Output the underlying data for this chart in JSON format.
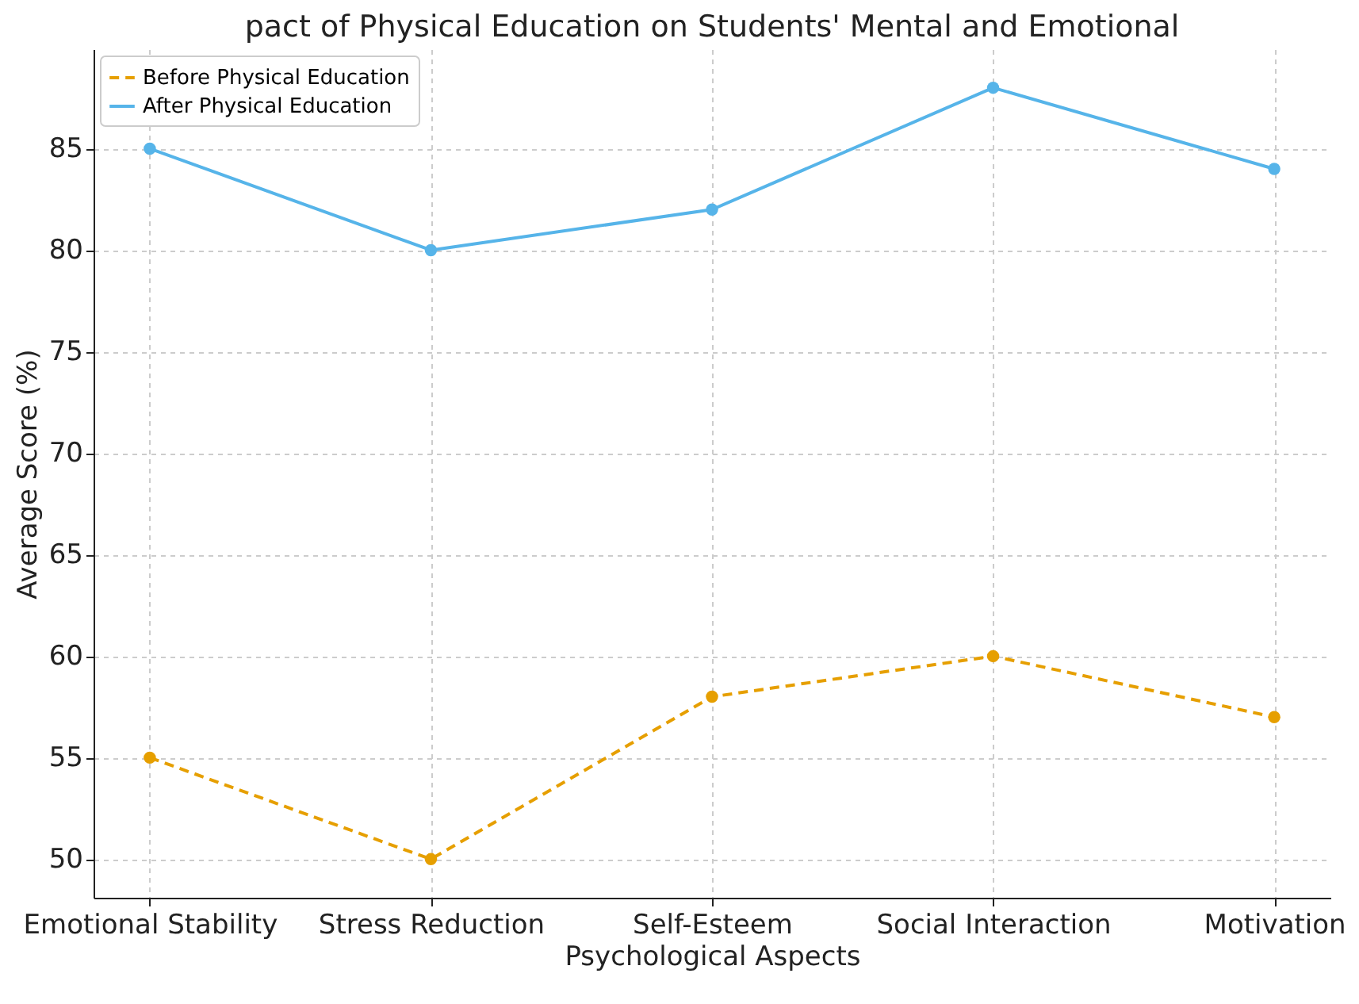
{
  "chart_data": {
    "type": "line",
    "title": "pact of Physical Education on Students' Mental and Emotional",
    "xlabel": "Psychological Aspects",
    "ylabel": "Average Score (%)",
    "categories": [
      "Emotional Stability",
      "Stress Reduction",
      "Self-Esteem",
      "Social Interaction",
      "Motivation"
    ],
    "series": [
      {
        "name": "Before Physical Education",
        "color": "#e69f00",
        "line_style": "dashed",
        "values": [
          55,
          50,
          58,
          60,
          57
        ]
      },
      {
        "name": "After Physical Education",
        "color": "#56b4e9",
        "line_style": "solid",
        "values": [
          85,
          80,
          82,
          88,
          84
        ]
      }
    ],
    "ylim": [
      48.1,
      89.9
    ],
    "yticks": [
      50,
      55,
      60,
      65,
      70,
      75,
      80,
      85
    ],
    "grid": true,
    "legend": "top left",
    "marker": "circle"
  }
}
